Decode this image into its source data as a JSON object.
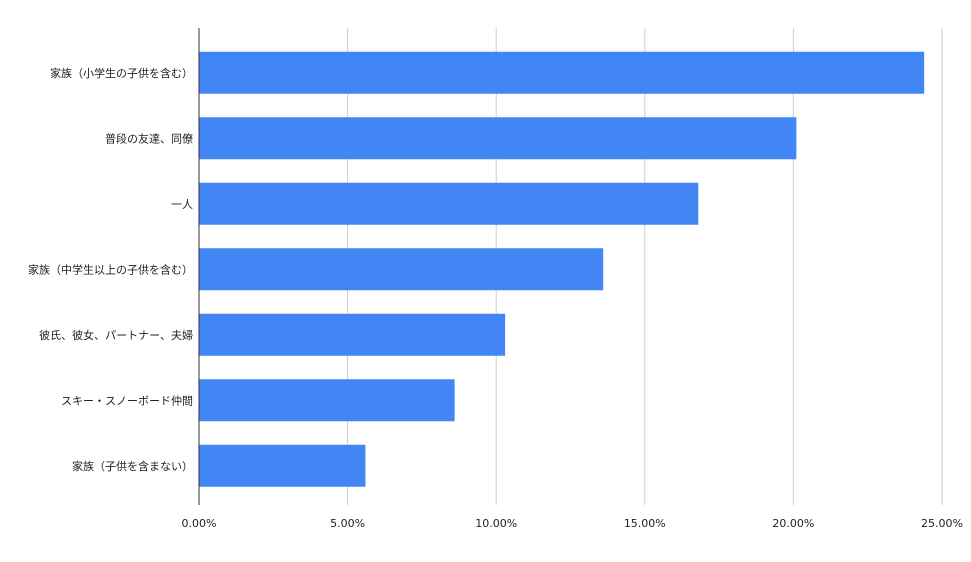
{
  "chart_data": {
    "type": "bar",
    "orientation": "horizontal",
    "categories": [
      "家族（小学生の子供を含む）",
      "普段の友達、同僚",
      "一人",
      "家族（中学生以上の子供を含む）",
      "彼氏、彼女、パートナー、夫婦",
      "スキー・スノーボード仲間",
      "家族（子供を含まない）"
    ],
    "values": [
      24.4,
      20.1,
      16.8,
      13.6,
      10.3,
      8.6,
      5.6
    ],
    "xlim": [
      0,
      25
    ],
    "tick_values": [
      0,
      5,
      10,
      15,
      20,
      25
    ],
    "tick_labels": [
      "0.00%",
      "5.00%",
      "10.00%",
      "15.00%",
      "20.00%",
      "25.00%"
    ],
    "grid": true,
    "colors": {
      "bar": "#4285F4",
      "grid": "#cccccc",
      "axis": "#333333",
      "text": "#222222"
    }
  }
}
